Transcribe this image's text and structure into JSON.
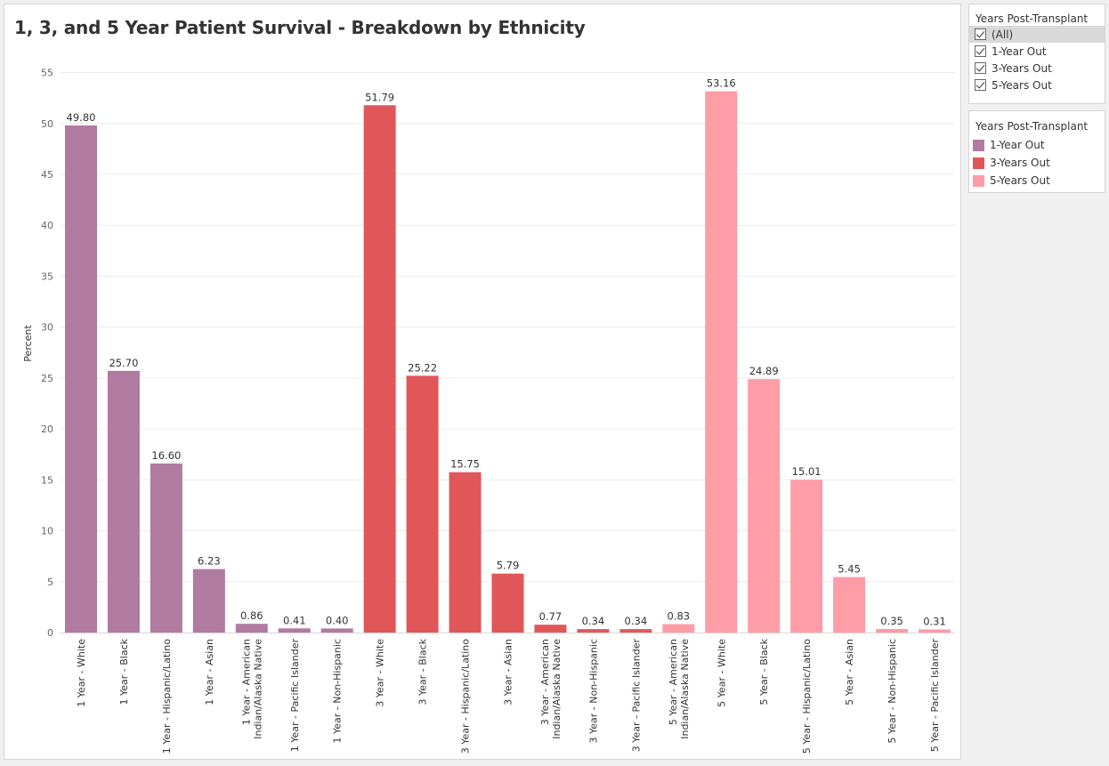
{
  "chart_data": {
    "type": "bar",
    "title": "1, 3, and 5 Year Patient Survival - Breakdown by Ethnicity",
    "xlabel": "",
    "ylabel": "Percent",
    "ylim": [
      0,
      57
    ],
    "yticks": [
      0,
      5,
      10,
      15,
      20,
      25,
      30,
      35,
      40,
      45,
      50,
      55
    ],
    "grid": true,
    "categories": [
      "1 Year - White",
      "1 Year - Black",
      "1 Year - Hispanic/Latino",
      "1 Year - Asian",
      "1 Year - American Indian/Alaska Native",
      "1 Year - Pacific Islander",
      "1 Year - Non-Hispanic",
      "3 Year - White",
      "3 Year - Black",
      "3 Year - Hispanic/Latino",
      "3 Year - Asian",
      "3 Year - American Indian/Alaska Native",
      "3 Year - Non-Hispanic",
      "3 Year - Pacific Islander",
      "5 Year - American Indian/Alaska Native",
      "5 Year - White",
      "5 Year - Black",
      "5 Year - Hispanic/Latino",
      "5 Year - Asian",
      "5 Year - Non-Hispanic",
      "5 Year - Pacific Islander"
    ],
    "values": [
      49.8,
      25.7,
      16.6,
      6.23,
      0.86,
      0.41,
      0.4,
      51.79,
      25.22,
      15.75,
      5.79,
      0.77,
      0.34,
      0.34,
      0.83,
      53.16,
      24.89,
      15.01,
      5.45,
      0.35,
      0.31
    ],
    "value_labels": [
      "49.80",
      "25.70",
      "16.60",
      "6.23",
      "0.86",
      "0.41",
      "0.40",
      "51.79",
      "25.22",
      "15.75",
      "5.79",
      "0.77",
      "0.34",
      "0.34",
      "0.83",
      "53.16",
      "24.89",
      "15.01",
      "5.45",
      "0.35",
      "0.31"
    ],
    "series_of_bar": [
      "1-Year Out",
      "1-Year Out",
      "1-Year Out",
      "1-Year Out",
      "1-Year Out",
      "1-Year Out",
      "1-Year Out",
      "3-Years Out",
      "3-Years Out",
      "3-Years Out",
      "3-Years Out",
      "3-Years Out",
      "3-Years Out",
      "3-Years Out",
      "5-Years Out",
      "5-Years Out",
      "5-Years Out",
      "5-Years Out",
      "5-Years Out",
      "5-Years Out",
      "5-Years Out"
    ],
    "series_colors": {
      "1-Year Out": "#b07aa1",
      "3-Years Out": "#e15759",
      "5-Years Out": "#ff9da7"
    }
  },
  "filter": {
    "title": "Years Post-Transplant",
    "items": [
      {
        "label": "(All)",
        "checked": true
      },
      {
        "label": "1-Year Out",
        "checked": true
      },
      {
        "label": "3-Years Out",
        "checked": true
      },
      {
        "label": "5-Years Out",
        "checked": true
      }
    ]
  },
  "legend": {
    "title": "Years Post-Transplant",
    "items": [
      {
        "label": "1-Year Out",
        "color": "#b07aa1"
      },
      {
        "label": "3-Years Out",
        "color": "#e15759"
      },
      {
        "label": "5-Years Out",
        "color": "#ff9da7"
      }
    ]
  }
}
